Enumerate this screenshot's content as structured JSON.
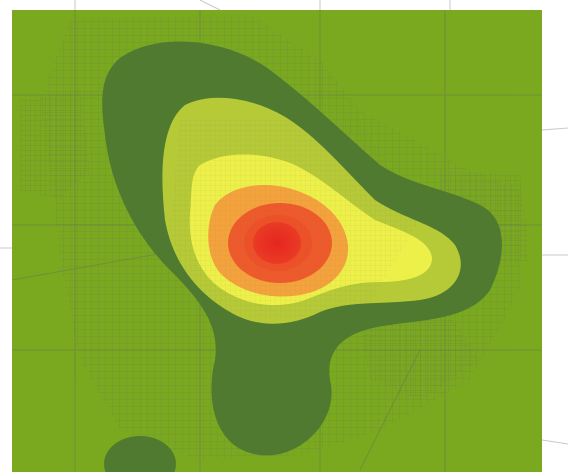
{
  "map": {
    "type": "heatmap-overlay",
    "colors": {
      "background": "#7aa81f",
      "density_band_low": "#4f7a30",
      "density_band_mid": "#b6c936",
      "density_band_yellow": "#eef04a",
      "density_band_orange": "#f4a23c",
      "density_band_high": "#ee5a2b",
      "density_peak": "#e8251e",
      "road_lines": "#5a6b58"
    }
  }
}
